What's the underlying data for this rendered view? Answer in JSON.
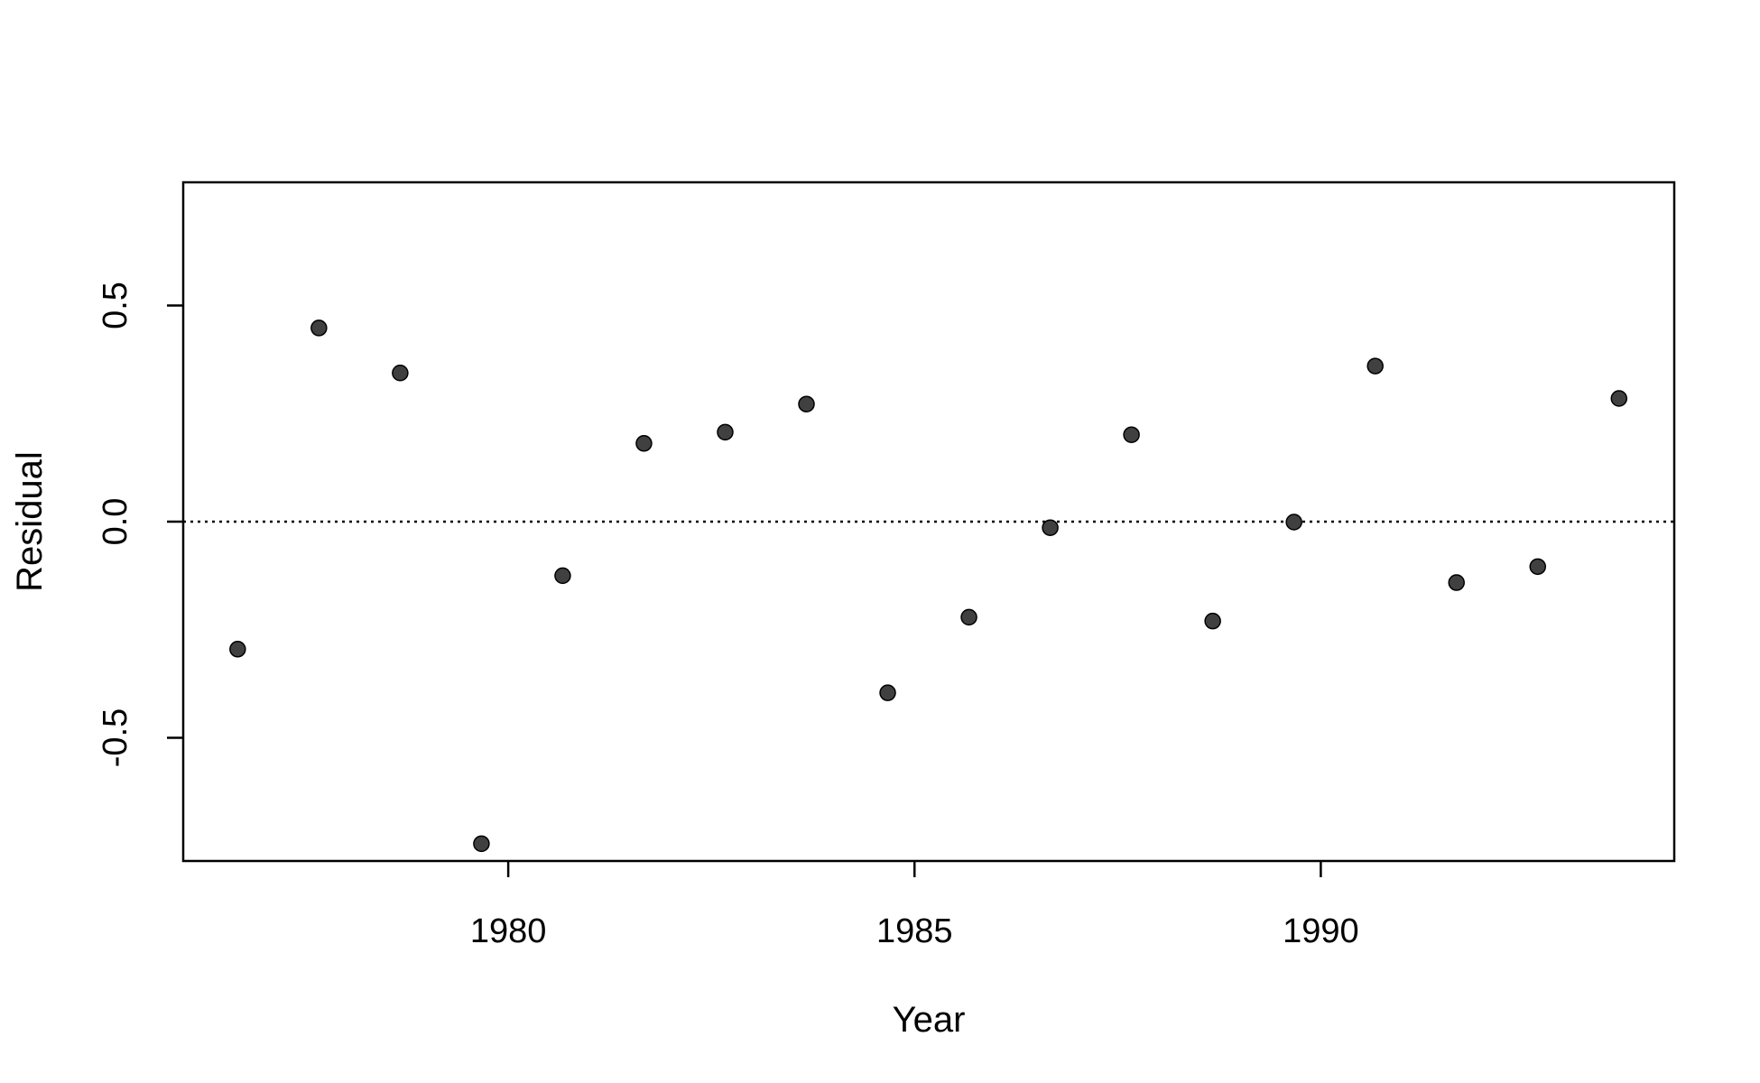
{
  "chart_data": {
    "type": "scatter",
    "title": "",
    "xlabel": "Year",
    "ylabel": "Residual",
    "xlim": [
      1976,
      1994.35
    ],
    "ylim": [
      -0.785,
      0.785
    ],
    "x_ticks": [
      1980,
      1985,
      1990
    ],
    "x_tick_labels": [
      "1980",
      "1985",
      "1990"
    ],
    "y_ticks": [
      -0.5,
      0.0,
      0.5
    ],
    "y_tick_labels": [
      "-0.5",
      "0.0",
      "0.5"
    ],
    "reference_line": {
      "y": 0.0,
      "style": "dotted"
    },
    "grid": false,
    "legend": "none",
    "point_color": "#404040",
    "series": [
      {
        "x": [
          1976.67,
          1977.67,
          1978.67,
          1979.67,
          1980.67,
          1981.67,
          1982.67,
          1983.67,
          1984.67,
          1985.67,
          1986.67,
          1987.67,
          1988.67,
          1989.67,
          1990.67,
          1991.67,
          1992.67,
          1993.67
        ],
        "values": [
          -0.295,
          0.448,
          0.344,
          -0.745,
          -0.125,
          0.181,
          0.207,
          0.272,
          -0.396,
          -0.221,
          -0.014,
          0.201,
          -0.23,
          -0.001,
          0.36,
          -0.141,
          -0.104,
          0.285
        ]
      }
    ]
  }
}
